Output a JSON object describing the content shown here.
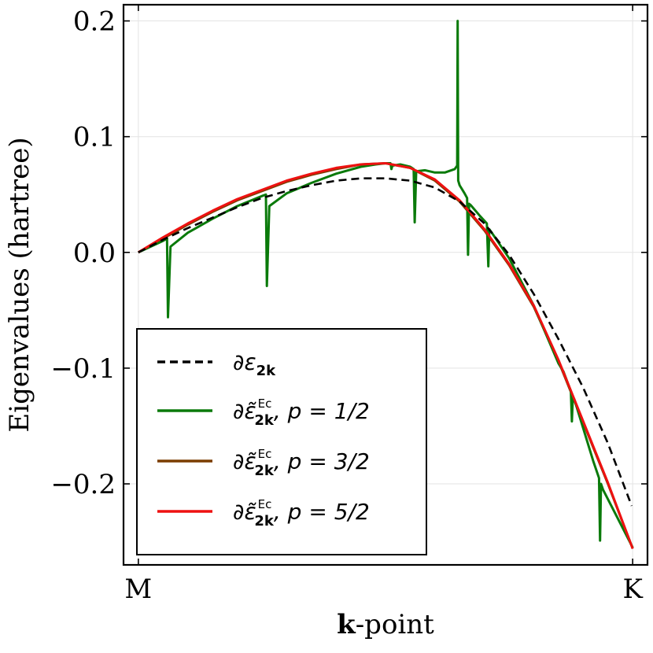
{
  "chart_data": {
    "type": "line",
    "title": "",
    "xlabel_bold": "k",
    "xlabel_rest": "-point",
    "ylabel": "Eigenvalues (hartree)",
    "x_ticks": [
      {
        "x": 0.0,
        "label": "M"
      },
      {
        "x": 1.0,
        "label": "K"
      }
    ],
    "y_ticks": [
      {
        "y": -0.2,
        "label": "−0.2"
      },
      {
        "y": -0.1,
        "label": "−0.1"
      },
      {
        "y": 0.0,
        "label": "0.0"
      },
      {
        "y": 0.1,
        "label": "0.1"
      },
      {
        "y": 0.2,
        "label": "0.2"
      }
    ],
    "xlim": [
      -0.03,
      1.03
    ],
    "ylim": [
      -0.27,
      0.214
    ],
    "grid": true,
    "legend_position": "bottom-left",
    "legend": [
      {
        "series": "reference",
        "symbol": "∂ε",
        "subscript": "2k",
        "superscript": "",
        "suffix": ""
      },
      {
        "series": "p_1_2",
        "symbol": "∂ε̃",
        "subscript": "2k",
        "superscript": "Ec",
        "suffix": ", p = 1/2"
      },
      {
        "series": "p_3_2",
        "symbol": "∂ε̃",
        "subscript": "2k",
        "superscript": "Ec",
        "suffix": ", p = 3/2"
      },
      {
        "series": "p_5_2",
        "symbol": "∂ε̃",
        "subscript": "2k",
        "superscript": "Ec",
        "suffix": ", p = 5/2"
      }
    ],
    "series": [
      {
        "name": "reference",
        "color": "#000000",
        "dashed": true,
        "x": [
          0,
          0.05,
          0.1,
          0.15,
          0.2,
          0.25,
          0.3,
          0.35,
          0.4,
          0.45,
          0.5,
          0.55,
          0.6,
          0.65,
          0.7,
          0.75,
          0.8,
          0.85,
          0.9,
          0.95,
          0.998
        ],
        "y": [
          0,
          0.011,
          0.021,
          0.03,
          0.039,
          0.047,
          0.053,
          0.058,
          0.062,
          0.064,
          0.064,
          0.062,
          0.056,
          0.044,
          0.025,
          -0.002,
          -0.036,
          -0.075,
          -0.117,
          -0.165,
          -0.219
        ]
      },
      {
        "name": "p_1_2",
        "color": "#0a7a0a",
        "dashed": false,
        "x": [
          0,
          0.05,
          0.058,
          0.06,
          0.065,
          0.1,
          0.15,
          0.2,
          0.252,
          0.258,
          0.26,
          0.265,
          0.3,
          0.35,
          0.4,
          0.45,
          0.48,
          0.5,
          0.51,
          0.512,
          0.514,
          0.53,
          0.55,
          0.557,
          0.559,
          0.562,
          0.58,
          0.6,
          0.62,
          0.64,
          0.645,
          0.646,
          0.647,
          0.65,
          0.66,
          0.665,
          0.667,
          0.669,
          0.672,
          0.69,
          0.705,
          0.708,
          0.71,
          0.715,
          0.75,
          0.8,
          0.85,
          0.86,
          0.875,
          0.877,
          0.879,
          0.882,
          0.9,
          0.92,
          0.932,
          0.934,
          0.936,
          0.94,
          1.0
        ],
        "y": [
          0,
          0.01,
          0.012,
          -0.056,
          0.005,
          0.017,
          0.029,
          0.04,
          0.049,
          0.05,
          -0.029,
          0.04,
          0.051,
          0.06,
          0.068,
          0.074,
          0.076,
          0.077,
          0.077,
          0.072,
          0.075,
          0.076,
          0.074,
          0.072,
          0.026,
          0.07,
          0.071,
          0.069,
          0.069,
          0.072,
          0.075,
          0.2,
          0.062,
          0.058,
          0.051,
          0.047,
          -0.002,
          0.042,
          0.041,
          0.032,
          0.025,
          -0.012,
          0.02,
          0.017,
          -0.005,
          -0.046,
          -0.096,
          -0.103,
          -0.12,
          -0.146,
          -0.125,
          -0.127,
          -0.152,
          -0.18,
          -0.195,
          -0.249,
          -0.2,
          -0.205,
          -0.255
        ]
      },
      {
        "name": "p_3_2",
        "color": "#7b3d00",
        "dashed": false,
        "x": [
          0,
          0.05,
          0.1,
          0.15,
          0.2,
          0.25,
          0.3,
          0.35,
          0.4,
          0.45,
          0.5,
          0.55,
          0.6,
          0.65,
          0.7,
          0.75,
          0.8,
          0.85,
          0.9,
          0.95,
          1.0
        ],
        "y": [
          0,
          0.012,
          0.024,
          0.035,
          0.045,
          0.053,
          0.061,
          0.067,
          0.072,
          0.076,
          0.077,
          0.073,
          0.062,
          0.044,
          0.019,
          -0.011,
          -0.047,
          -0.094,
          -0.147,
          -0.2,
          -0.256
        ]
      },
      {
        "name": "p_5_2",
        "color": "#ee1111",
        "dashed": false,
        "x": [
          0,
          0.05,
          0.1,
          0.15,
          0.2,
          0.25,
          0.3,
          0.35,
          0.4,
          0.45,
          0.5,
          0.55,
          0.6,
          0.65,
          0.7,
          0.75,
          0.8,
          0.85,
          0.9,
          0.95,
          1.0
        ],
        "y": [
          0,
          0.013,
          0.025,
          0.036,
          0.046,
          0.054,
          0.062,
          0.068,
          0.073,
          0.076,
          0.077,
          0.073,
          0.063,
          0.045,
          0.02,
          -0.01,
          -0.046,
          -0.093,
          -0.146,
          -0.199,
          -0.256
        ]
      }
    ]
  }
}
